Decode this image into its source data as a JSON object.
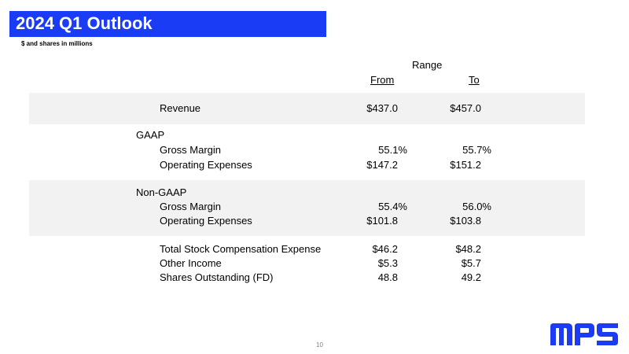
{
  "slide": {
    "title": "2024 Q1 Outlook",
    "subtitle": "$ and shares in millions",
    "page_number": "10"
  },
  "columns": {
    "range": "Range",
    "from": "From",
    "to": "To"
  },
  "rows": {
    "revenue": {
      "label": "Revenue",
      "from": "$437.0",
      "to": "$457.0"
    },
    "gaap_header": "GAAP",
    "gaap_gross_margin": {
      "label": "Gross Margin",
      "from": "55.1%",
      "to": "55.7%"
    },
    "gaap_opex": {
      "label": "Operating Expenses",
      "from": "$147.2",
      "to": "$151.2"
    },
    "nongaap_header": "Non-GAAP",
    "nongaap_gross_margin": {
      "label": "Gross Margin",
      "from": "55.4%",
      "to": "56.0%"
    },
    "nongaap_opex": {
      "label": "Operating Expenses",
      "from": "$101.8",
      "to": "$103.8"
    },
    "stock_comp": {
      "label": "Total Stock Compensation Expense",
      "from": "$46.2",
      "to": "$48.2"
    },
    "other_income": {
      "label": "Other Income",
      "from": "$5.3",
      "to": "$5.7"
    },
    "shares": {
      "label": "Shares Outstanding (FD)",
      "from": "48.8",
      "to": "49.2"
    }
  },
  "logo": {
    "text": "MPS",
    "color": "#1a3cf5"
  },
  "colors": {
    "title_bar": "#1a3cf5",
    "band": "#f2f2f2"
  }
}
